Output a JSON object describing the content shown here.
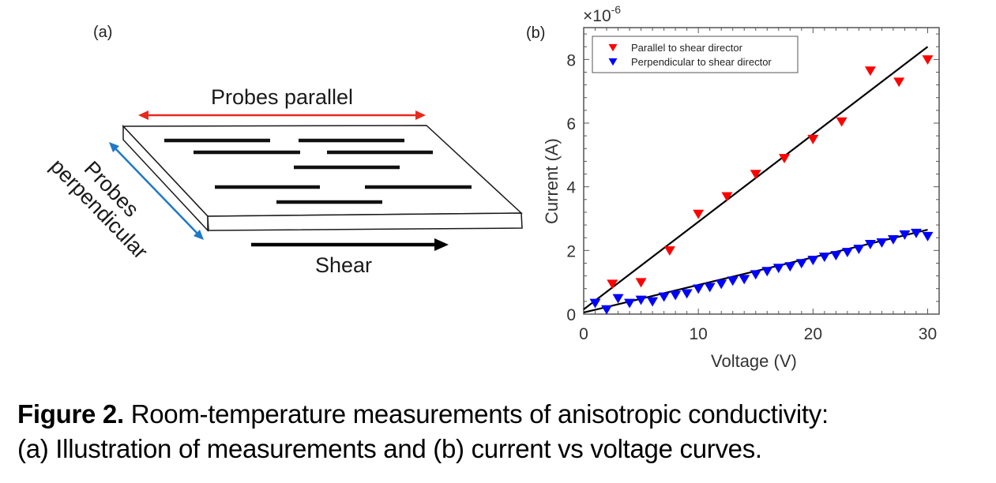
{
  "panel_a": {
    "label": "(a)",
    "probes_parallel_label": "Probes parallel",
    "probes_perpendicular_label_line1": "Probes",
    "probes_perpendicular_label_line2": "perpendicular",
    "shear_label": "Shear",
    "colors": {
      "parallel_arrow": "#e8281e",
      "perpendicular_arrow": "#1f78c8",
      "shear_arrow": "#000000"
    }
  },
  "caption": {
    "bold": "Figure 2.",
    "line1_rest": " Room-temperature measurements of anisotropic conductivity:",
    "line2": "(a) Illustration of measurements and (b) current vs voltage curves."
  },
  "chart_data": {
    "type": "scatter",
    "panel_label": "(b)",
    "title": "",
    "xlabel": "Voltage (V)",
    "ylabel": "Current (A)",
    "y_multiplier_label": "×10",
    "y_multiplier_exponent": "-6",
    "xlim": [
      0,
      31
    ],
    "ylim": [
      0,
      9
    ],
    "xticks": [
      0,
      10,
      20,
      30
    ],
    "yticks": [
      0,
      2,
      4,
      6,
      8
    ],
    "grid": false,
    "legend_position": "top-left",
    "series": [
      {
        "name": "Parallel to shear director",
        "color": "#ff0000",
        "marker": "triangle-down",
        "x": [
          2.5,
          5,
          7.5,
          10,
          12.5,
          15,
          17.5,
          20,
          22.5,
          25,
          27.5,
          30
        ],
        "y": [
          0.95,
          1.0,
          2.0,
          3.15,
          3.7,
          4.4,
          4.9,
          5.5,
          6.05,
          7.65,
          7.3,
          8.0
        ],
        "fit_line": {
          "x": [
            0,
            30
          ],
          "y": [
            0.15,
            8.4
          ],
          "color": "#000000"
        }
      },
      {
        "name": "Perpendicular to shear director",
        "color": "#0000ff",
        "marker": "triangle-down",
        "x": [
          1,
          2,
          3,
          4,
          5,
          6,
          7,
          8,
          9,
          10,
          11,
          12,
          13,
          14,
          15,
          16,
          17,
          18,
          19,
          20,
          21,
          22,
          23,
          24,
          25,
          26,
          27,
          28,
          29,
          30
        ],
        "y": [
          0.35,
          0.15,
          0.5,
          0.35,
          0.45,
          0.4,
          0.55,
          0.6,
          0.65,
          0.8,
          0.85,
          0.95,
          1.05,
          1.1,
          1.25,
          1.35,
          1.45,
          1.5,
          1.6,
          1.7,
          1.8,
          1.85,
          1.95,
          2.05,
          2.2,
          2.25,
          2.35,
          2.5,
          2.55,
          2.45
        ],
        "fit_line": {
          "x": [
            0,
            30
          ],
          "y": [
            0.05,
            2.65
          ],
          "color": "#000000"
        }
      }
    ]
  }
}
